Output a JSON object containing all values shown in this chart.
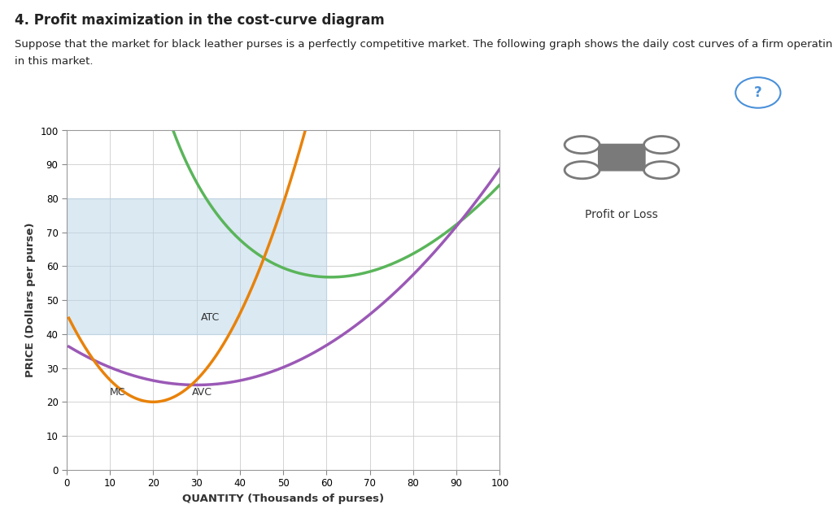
{
  "title": "4. Profit maximization in the cost-curve diagram",
  "subtitle_line1": "Suppose that the market for black leather purses is a perfectly competitive market. The following graph shows the daily cost curves of a firm operating",
  "subtitle_line2": "in this market.",
  "xlabel": "QUANTITY (Thousands of purses)",
  "ylabel": "PRICE (Dollars per purse)",
  "xlim": [
    0,
    100
  ],
  "ylim": [
    0,
    100
  ],
  "xticks": [
    0,
    10,
    20,
    30,
    40,
    50,
    60,
    70,
    80,
    90,
    100
  ],
  "yticks": [
    0,
    10,
    20,
    30,
    40,
    50,
    60,
    70,
    80,
    90,
    100
  ],
  "atc_color": "#5ab55a",
  "avc_color": "#9b59b6",
  "mc_color": "#e8820a",
  "shaded_color": "#b8d4e8",
  "shaded_alpha": 0.5,
  "legend_label": "Profit or Loss",
  "bg_color": "#ffffff",
  "grid_color": "#cccccc",
  "text_color": "#222222",
  "panel_border_color": "#cccccc"
}
